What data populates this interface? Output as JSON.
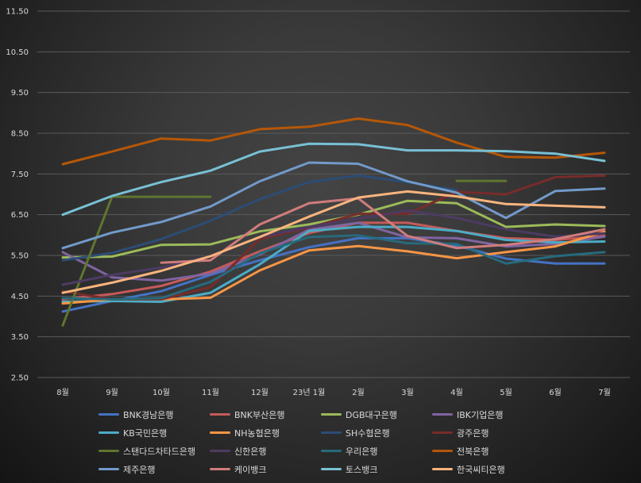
{
  "chart_data": {
    "type": "line",
    "title": "",
    "xlabel": "",
    "ylabel": "",
    "ylim": [
      2.5,
      11.5
    ],
    "yticks": [
      "2.50",
      "3.50",
      "4.50",
      "5.50",
      "6.50",
      "7.50",
      "8.50",
      "9.50",
      "10.50",
      "11.50"
    ],
    "categories": [
      "8월",
      "9월",
      "10월",
      "11월",
      "12월",
      "23년 1월",
      "2월",
      "3월",
      "4월",
      "5월",
      "6월",
      "7월"
    ],
    "grid": true,
    "legend_position": "bottom",
    "series": [
      {
        "name": "BNK경남은행",
        "color": "#4472c4",
        "values": [
          4.12,
          4.38,
          4.62,
          5.02,
          5.38,
          5.7,
          5.92,
          5.92,
          5.74,
          5.42,
          5.3,
          5.3
        ]
      },
      {
        "name": "BNK부산은행",
        "color": "#c55a5a",
        "values": [
          4.42,
          4.55,
          4.75,
          5.1,
          5.6,
          6.05,
          6.3,
          6.3,
          6.1,
          5.92,
          5.88,
          5.98
        ]
      },
      {
        "name": "DGB대구은행",
        "color": "#9bbb59",
        "values": [
          5.45,
          5.47,
          5.76,
          5.77,
          6.09,
          6.26,
          6.5,
          6.84,
          6.78,
          6.2,
          6.26,
          6.22
        ]
      },
      {
        "name": "IBK기업은행",
        "color": "#8064a2",
        "values": [
          5.58,
          4.96,
          4.88,
          5.05,
          5.52,
          6.13,
          6.3,
          5.94,
          5.92,
          5.72,
          5.78,
          5.96
        ]
      },
      {
        "name": "KB국민은행",
        "color": "#4bacc6",
        "values": [
          4.36,
          4.38,
          4.36,
          4.58,
          5.28,
          6.1,
          6.2,
          6.2,
          6.1,
          5.88,
          5.82,
          5.84
        ]
      },
      {
        "name": "NH농협은행",
        "color": "#f79646",
        "values": [
          4.32,
          4.42,
          4.42,
          4.46,
          5.13,
          5.62,
          5.73,
          5.6,
          5.43,
          5.58,
          5.72,
          6.08
        ]
      },
      {
        "name": "SH수협은행",
        "color": "#2c4d75",
        "values": [
          5.38,
          5.56,
          5.9,
          6.35,
          6.88,
          7.3,
          7.46,
          7.3,
          7.1,
          null,
          null,
          null
        ]
      },
      {
        "name": "광주은행",
        "color": "#772c2a",
        "values": [
          4.62,
          4.42,
          4.42,
          4.72,
          5.9,
          6.18,
          6.52,
          6.52,
          7.06,
          7.0,
          7.42,
          7.46
        ]
      },
      {
        "name": "스탠다드차타드은행",
        "color": "#5f7530",
        "values": [
          3.78,
          6.94,
          6.94,
          6.94,
          null,
          null,
          null,
          null,
          7.33,
          7.33,
          null,
          null
        ]
      },
      {
        "name": "신한은행",
        "color": "#4d3b62",
        "values": [
          4.78,
          5.02,
          5.2,
          5.48,
          5.95,
          6.2,
          6.4,
          6.6,
          6.42,
          6.14,
          5.96,
          6.04
        ]
      },
      {
        "name": "우리은행",
        "color": "#276a7c",
        "values": [
          4.45,
          4.42,
          4.45,
          4.85,
          5.55,
          5.95,
          5.99,
          5.8,
          5.78,
          5.3,
          5.48,
          5.58
        ]
      },
      {
        "name": "전북은행",
        "color": "#b65708",
        "values": [
          7.74,
          8.05,
          8.37,
          8.32,
          8.6,
          8.66,
          8.86,
          8.7,
          8.27,
          7.92,
          7.9,
          8.02
        ]
      },
      {
        "name": "제주은행",
        "color": "#729aca",
        "values": [
          5.68,
          6.06,
          6.32,
          6.7,
          7.32,
          7.78,
          7.75,
          7.32,
          7.04,
          6.42,
          7.08,
          7.14
        ]
      },
      {
        "name": "케이뱅크",
        "color": "#d07c7c",
        "values": [
          null,
          null,
          5.32,
          5.38,
          6.26,
          6.78,
          6.9,
          5.98,
          5.68,
          5.76,
          5.9,
          6.14
        ]
      },
      {
        "name": "토스뱅크",
        "color": "#78c0d4",
        "values": [
          6.5,
          6.96,
          7.3,
          7.58,
          8.05,
          8.24,
          8.23,
          8.08,
          8.08,
          8.06,
          8.0,
          7.82
        ]
      },
      {
        "name": "한국씨티은행",
        "color": "#f9b47e",
        "values": [
          4.58,
          4.83,
          5.12,
          5.48,
          5.95,
          6.45,
          6.92,
          7.07,
          6.95,
          6.76,
          6.72,
          6.68
        ]
      }
    ]
  }
}
